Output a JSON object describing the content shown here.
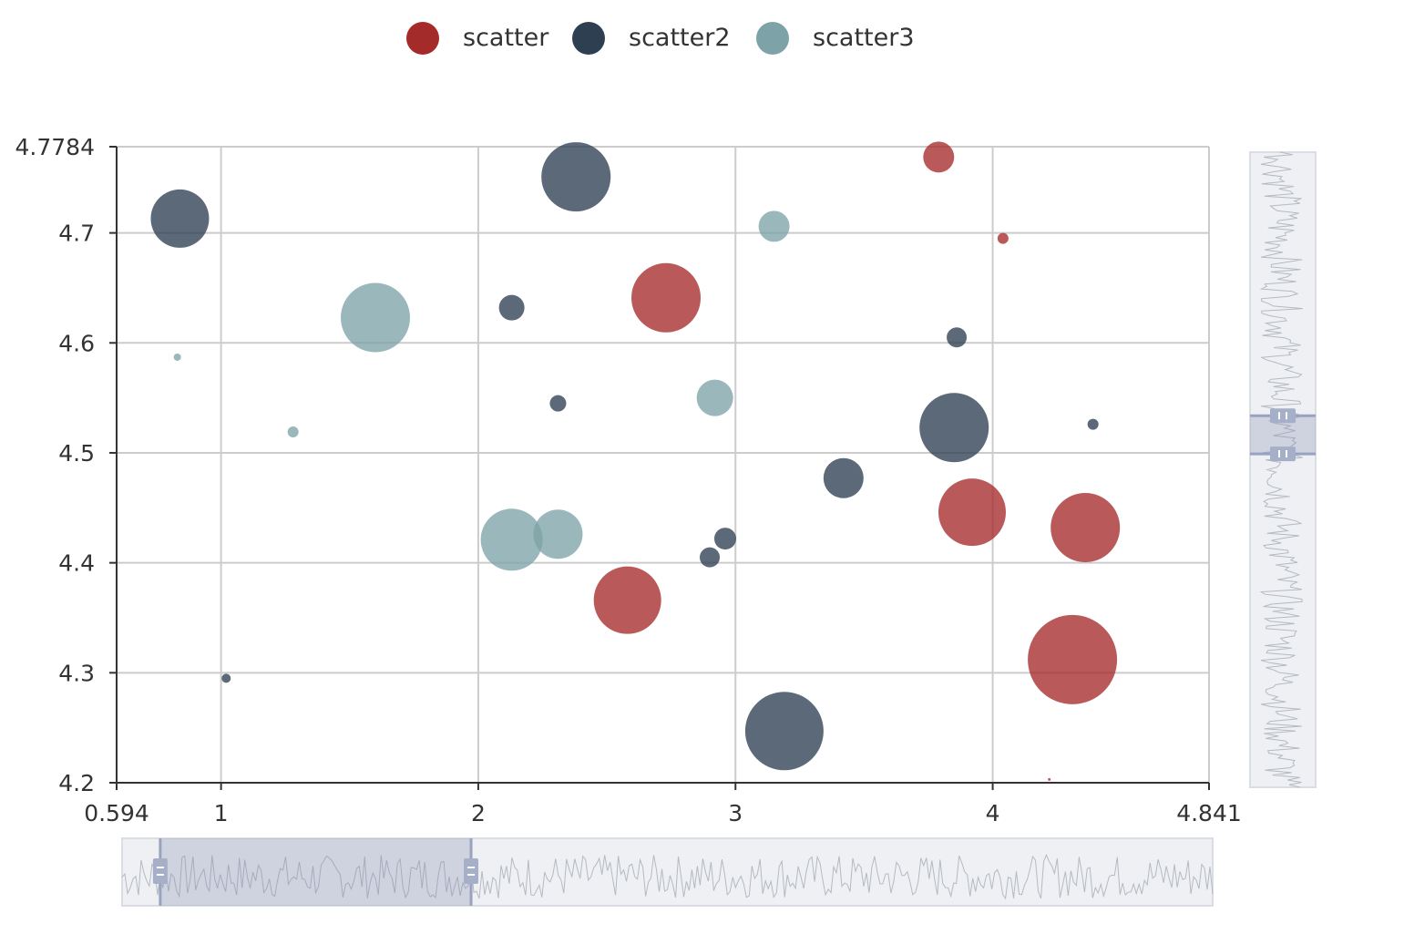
{
  "chart_data": {
    "type": "scatter",
    "title": "",
    "xlabel": "",
    "ylabel": "",
    "xlim": [
      0.594,
      4.841
    ],
    "ylim": [
      4.2,
      4.7784
    ],
    "x_ticks": [
      "0.594",
      "1",
      "2",
      "3",
      "4",
      "4.841"
    ],
    "y_ticks": [
      "4.7784",
      "4.7",
      "4.6",
      "4.5",
      "4.4",
      "4.3",
      "4.2"
    ],
    "grid": true,
    "legend_position": "top-center",
    "legend": [
      "scatter",
      "scatter2",
      "scatter3"
    ],
    "series": [
      {
        "name": "scatter",
        "color": "#a52a2a",
        "points": [
          {
            "x": 3.79,
            "y": 4.769,
            "size": 17
          },
          {
            "x": 4.04,
            "y": 4.695,
            "size": 6
          },
          {
            "x": 2.73,
            "y": 4.641,
            "size": 38
          },
          {
            "x": 3.92,
            "y": 4.446,
            "size": 37
          },
          {
            "x": 4.36,
            "y": 4.432,
            "size": 38
          },
          {
            "x": 2.58,
            "y": 4.366,
            "size": 37
          },
          {
            "x": 4.31,
            "y": 4.312,
            "size": 49
          },
          {
            "x": 4.22,
            "y": 4.203,
            "size": 1
          }
        ]
      },
      {
        "name": "scatter2",
        "color": "#2e3f52",
        "points": [
          {
            "x": 2.38,
            "y": 4.751,
            "size": 38
          },
          {
            "x": 0.84,
            "y": 4.713,
            "size": 32
          },
          {
            "x": 2.13,
            "y": 4.632,
            "size": 14
          },
          {
            "x": 3.86,
            "y": 4.605,
            "size": 11
          },
          {
            "x": 2.31,
            "y": 4.545,
            "size": 9
          },
          {
            "x": 3.85,
            "y": 4.523,
            "size": 38
          },
          {
            "x": 4.39,
            "y": 4.526,
            "size": 6
          },
          {
            "x": 3.42,
            "y": 4.477,
            "size": 22
          },
          {
            "x": 2.96,
            "y": 4.422,
            "size": 12
          },
          {
            "x": 2.9,
            "y": 4.405,
            "size": 11
          },
          {
            "x": 1.02,
            "y": 4.295,
            "size": 5
          },
          {
            "x": 3.19,
            "y": 4.247,
            "size": 43
          }
        ]
      },
      {
        "name": "scatter3",
        "color": "#7da3a8",
        "points": [
          {
            "x": 3.15,
            "y": 4.706,
            "size": 17
          },
          {
            "x": 1.6,
            "y": 4.623,
            "size": 38
          },
          {
            "x": 0.83,
            "y": 4.587,
            "size": 4
          },
          {
            "x": 2.92,
            "y": 4.55,
            "size": 20
          },
          {
            "x": 1.28,
            "y": 4.519,
            "size": 6
          },
          {
            "x": 2.13,
            "y": 4.421,
            "size": 34
          },
          {
            "x": 2.31,
            "y": 4.426,
            "size": 27
          }
        ]
      }
    ],
    "data_zoom": {
      "x_range": [
        0.035,
        0.32
      ],
      "y_range": [
        0.415,
        0.475
      ]
    }
  }
}
